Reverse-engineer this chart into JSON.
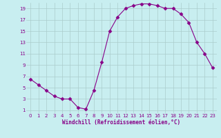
{
  "x_values": [
    0,
    1,
    2,
    3,
    4,
    5,
    6,
    7,
    8,
    9,
    10,
    11,
    12,
    13,
    14,
    15,
    16,
    17,
    18,
    19,
    20,
    21,
    22,
    23
  ],
  "y_values": [
    6.5,
    5.5,
    4.5,
    3.5,
    3.0,
    3.0,
    1.5,
    1.2,
    4.5,
    9.5,
    15.0,
    17.5,
    19.0,
    19.5,
    19.8,
    19.8,
    19.5,
    19.0,
    19.0,
    18.0,
    16.5,
    13.0,
    11.0,
    8.5
  ],
  "line_color": "#880088",
  "marker": "D",
  "marker_size": 2.5,
  "bg_color": "#c8eef0",
  "grid_color": "#aacccc",
  "xlabel": "Windchill (Refroidissement éolien,°C)",
  "xlabel_color": "#880088",
  "tick_color": "#880088",
  "xlim_min": -0.5,
  "xlim_max": 23.5,
  "ylim_min": 0.5,
  "ylim_max": 20.0,
  "yticks": [
    1,
    3,
    5,
    7,
    9,
    11,
    13,
    15,
    17,
    19
  ],
  "xticks": [
    0,
    1,
    2,
    3,
    4,
    5,
    6,
    7,
    8,
    9,
    10,
    11,
    12,
    13,
    14,
    15,
    16,
    17,
    18,
    19,
    20,
    21,
    22,
    23
  ],
  "label_fontsize": 5.0,
  "xlabel_fontsize": 5.5
}
